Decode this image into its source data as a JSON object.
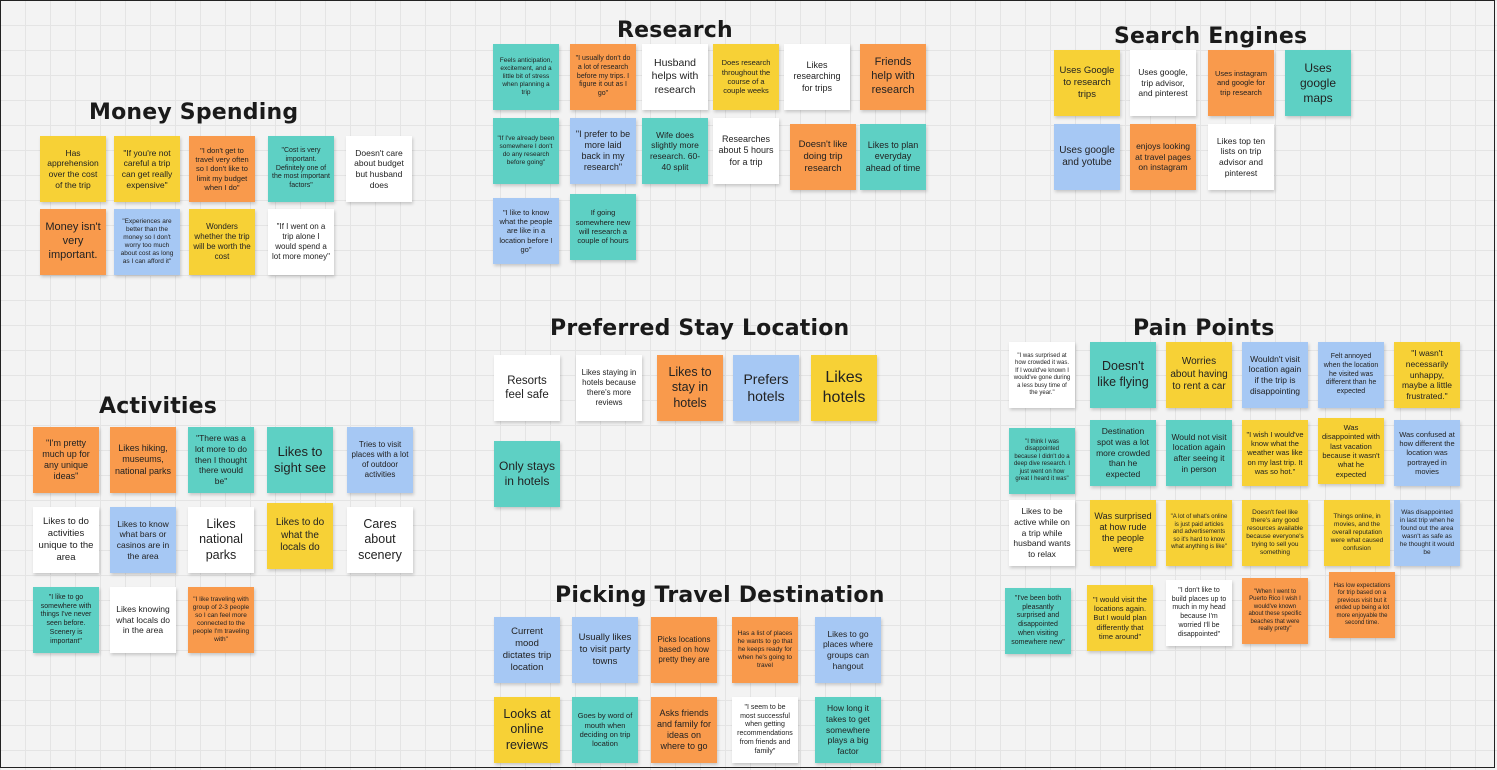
{
  "colors": {
    "yellow": "#f7d136",
    "orange": "#f99a4c",
    "teal": "#5ed0c4",
    "blue": "#a6c8f4",
    "white": "#ffffff"
  },
  "sections": {
    "money": "Money Spending",
    "research": "Research",
    "search": "Search Engines",
    "stay": "Preferred Stay Location",
    "pain": "Pain Points",
    "activities": "Activities",
    "picking": "Picking Travel Destination"
  },
  "notes": {
    "money": [
      "Has apprehension over the cost of the trip",
      "\"If you're not careful a trip can get really expensive\"",
      "\"I don't get to travel very often so I don't like to limit my budget when I do\"",
      "\"Cost is very important. Definitely one of the most important factors\"",
      "Doesn't care about budget but husband does",
      "Money isn't very important.",
      "\"Experiences are better than the money so I don't worry too much about cost as long as I can afford it\"",
      "Wonders whether the trip will be worth the cost",
      "\"If I went on a trip alone I would spend a lot more money\""
    ],
    "research": [
      "Feels anticipation, excitement, and a little bit of stress when planning a trip",
      "\"I usually don't do a lot of research before my trips. I figure it out as I go\"",
      "Husband helps with research",
      "Does research throughout the course of a couple weeks",
      "Likes researching for trips",
      "Friends help with research",
      "\"If I've already been somewhere I don't do any research before going\"",
      "\"I prefer to be more laid back in my research\"",
      "Wife does slightly more research. 60-40 split",
      "Researches about 5 hours for a trip",
      "Doesn't like doing trip research",
      "Likes to plan everyday ahead of time",
      "\"I like to know what the people are like in a location before I go\"",
      "If going somewhere new will research a couple of hours"
    ],
    "search": [
      "Uses Google to research trips",
      "Uses google, trip advisor, and pinterest",
      "Uses instagram and google for trip research",
      "Uses google maps",
      "Uses google and yotube",
      "enjoys looking at travel pages on instagram",
      "Likes top ten lists on trip advisor and pinterest"
    ],
    "stay": [
      "Resorts feel safe",
      "Likes staying in hotels because there's more reviews",
      "Likes to stay in hotels",
      "Prefers hotels",
      "Likes hotels",
      "Only stays in hotels"
    ],
    "pain": [
      "\"I was surprised at how crowded it was. If I would've known I would've gone during a less busy time of the year.\"",
      "Doesn't like flying",
      "Worries about having to rent a car",
      "Wouldn't visit location again if the trip is disappointing",
      "Felt annoyed when the location he visited was different than he expected",
      "\"I wasn't necessarily unhappy, maybe a little frustrated.\"",
      "\"I think I was disappointed because I didn't do a deep dive research. I just went on how great I heard it was\"",
      "Destination spot was a lot more crowded than he expected",
      "Would not visit location again after seeing it in person",
      "\"I wish I would've know what the weather was like on my last trip. It was so hot.\"",
      "Was disappointed with last vacation because it wasn't what he expected",
      "Was confused at how different the location was portrayed in movies",
      "Likes to be active while on a trip while husband wants to relax",
      "Was surprised at how rude the people were",
      "\"A lot of what's online is just paid articles and advertisements so it's hard to know what anything is like\"",
      "Doesn't feel like there's any good resources available because everyone's trying to sell you something",
      "Things online, in movies, and the overall reputation were what caused confusion",
      "Was disappointed in last trip when he found out the area wasn't as safe as he thought it would be",
      "\"I've been both pleasantly surprised and disappointed when visiting somewhere new\"",
      "\"I would visit the locations again. But I would plan differently that time around\"",
      "\"I don't like to build places up to much in my head because I'm worried I'll be disappointed\"",
      "\"When I went to Puerto Rico I wish I would've known about these specific beaches that were really pretty\"",
      "Has low expectations for trip based on a previous visit but it ended up being a lot more enjoyable the second time."
    ],
    "activities": [
      "\"I'm pretty much up for any unique ideas\"",
      "Likes hiking, museums, national parks",
      "\"There was a lot more to do then I thought there would be\"",
      "Likes to sight see",
      "Tries to visit places with a lot of outdoor activities",
      "Likes to do activities unique to the area",
      "Likes to know what bars or casinos are in the area",
      "Likes national parks",
      "Likes to do what the locals do",
      "Cares about scenery",
      "\"I like to go somewhere with things I've never seen before. Scenery is important\"",
      "Likes knowing what locals do in the area",
      "\"I like traveling with group of 2-3 people so I can feel more connected to the people I'm traveling with\""
    ],
    "picking": [
      "Current mood dictates trip location",
      "Usually likes to visit party towns",
      "Picks locations based on how pretty they are",
      "Has a list of places he wants to go that he keeps ready for when he's going to travel",
      "Likes to go places where groups can hangout",
      "Looks at online reviews",
      "Goes by word of mouth when deciding on trip location",
      "Asks friends and family for ideas on where to go",
      "\"I seem to be most successful when getting recommendations from friends and family\"",
      "How long it takes to get somewhere plays a big factor"
    ]
  }
}
